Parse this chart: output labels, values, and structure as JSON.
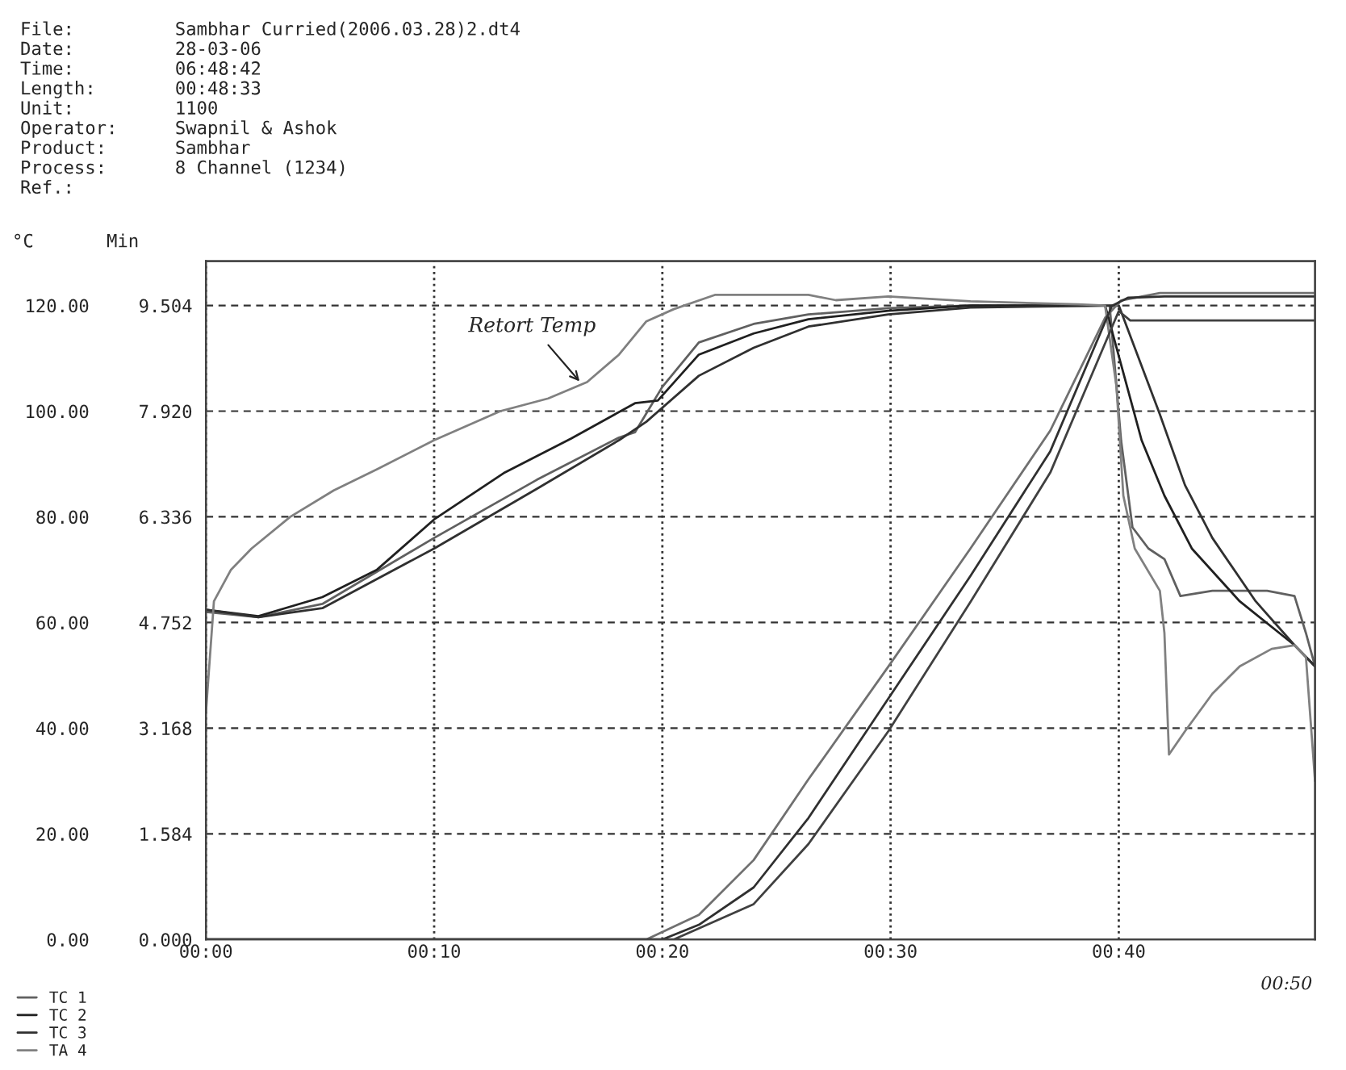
{
  "chart_data": {
    "type": "line",
    "ylabel": "°C",
    "y2label": "Min",
    "annotations": [
      "File: Sambhar Curried(2006.03.28)2.dt4",
      "Date: 28-03-06",
      "Time: 06:48:42",
      "Length: 00:48:33",
      "Unit: 1100",
      "Operator: Swapnil & Ashok",
      "Product: Sambhar",
      "Process: 8 Channel (1234)",
      "Ref.:",
      {
        "text": "Retort Temp",
        "x": 16.5,
        "y": 105
      },
      "00:50"
    ],
    "xlim": [
      0,
      48.6
    ],
    "xticks": [
      {
        "value": 0,
        "label": "00:00"
      },
      {
        "value": 10,
        "label": "00:10"
      },
      {
        "value": 20,
        "label": "00:20"
      },
      {
        "value": 30,
        "label": "00:30"
      },
      {
        "value": 40,
        "label": "00:40"
      }
    ],
    "ylim": [
      0,
      128.4
    ],
    "yticks": [
      {
        "value": 0,
        "label": "0.00"
      },
      {
        "value": 20,
        "label": "20.00"
      },
      {
        "value": 40,
        "label": "40.00"
      },
      {
        "value": 60,
        "label": "60.00"
      },
      {
        "value": 80,
        "label": "80.00"
      },
      {
        "value": 100,
        "label": "100.00"
      },
      {
        "value": 120,
        "label": "120.00"
      }
    ],
    "y2lim": [
      0,
      10.17
    ],
    "y2ticks": [
      {
        "value": 0,
        "label": "0.000"
      },
      {
        "value": 1.584,
        "label": "1.584"
      },
      {
        "value": 3.168,
        "label": "3.168"
      },
      {
        "value": 4.752,
        "label": "4.752"
      },
      {
        "value": 6.336,
        "label": "6.336"
      },
      {
        "value": 7.92,
        "label": "7.920"
      },
      {
        "value": 9.504,
        "label": "9.504"
      }
    ],
    "grid": true,
    "legend": "bottom left",
    "series": [
      {
        "name": "TC 1",
        "color": "#606060",
        "x": [
          0,
          2.3,
          5.1,
          10,
          14.5,
          18.1,
          18.8,
          20,
          21.6,
          24,
          26.4,
          29.9,
          33.5,
          39.6,
          40.1,
          40.6,
          41.3,
          42,
          42.7,
          44.1,
          46.5,
          47.7,
          48.2,
          48.6
        ],
        "values": [
          62,
          61,
          63.5,
          76,
          87,
          95,
          96,
          104.6,
          113,
          116.5,
          118.3,
          119.5,
          120,
          120,
          94.5,
          78,
          74,
          72,
          65,
          66,
          66,
          65,
          58,
          51.7
        ]
      },
      {
        "name": "TC 2",
        "color": "#202020",
        "x": [
          0,
          2.3,
          5.1,
          7.5,
          10,
          13.1,
          16,
          18.8,
          19.8,
          21.6,
          24,
          26.4,
          29.9,
          33.5,
          39.4,
          41,
          42,
          43.2,
          45.3,
          47.7,
          48.6
        ],
        "values": [
          62.4,
          61.2,
          64.8,
          70,
          79.5,
          88.4,
          94.8,
          101.5,
          102,
          110.7,
          114.7,
          117.4,
          119,
          120,
          120,
          94.5,
          84,
          74,
          64,
          55.7,
          51.7
        ]
      },
      {
        "name": "TC 3",
        "color": "#303030",
        "x": [
          0,
          2.3,
          5.1,
          10,
          14.5,
          18.1,
          19.3,
          21.6,
          24,
          26.4,
          29.9,
          33.5,
          40,
          41.8,
          42.9,
          44.1,
          46,
          47.7,
          48.6
        ],
        "values": [
          62.4,
          61,
          62.7,
          74,
          85.3,
          94.5,
          98,
          106.7,
          112,
          116,
          118.3,
          119.6,
          120,
          99.4,
          86,
          76,
          64,
          55.7,
          51.7
        ]
      },
      {
        "name": "TA 4",
        "color": "#808080",
        "x": [
          0,
          0.35,
          1.1,
          2,
          3.7,
          5.6,
          7.5,
          10,
          12.9,
          15,
          16.7,
          18.1,
          19.3,
          20.5,
          22.3,
          26.4,
          27.6,
          29.9,
          33.5,
          38.2,
          39.4,
          39.9,
          40.2,
          40.7,
          41.8,
          42,
          42.2,
          42.9,
          44.1,
          45.3,
          46.7,
          47.7,
          48.2,
          48.6
        ],
        "values": [
          43,
          64,
          70,
          74,
          80,
          85,
          89,
          94.5,
          100,
          102.4,
          105.5,
          110.7,
          117,
          119.3,
          122,
          122,
          121,
          121.7,
          120.8,
          120.2,
          120,
          104.6,
          84,
          74,
          66,
          58,
          35,
          39.4,
          46.5,
          51.7,
          55,
          55.7,
          53.5,
          30
        ]
      },
      {
        "axis": "y2",
        "color": "#707070",
        "x": [
          0,
          19.3,
          21.6,
          24,
          26.4,
          29.9,
          33.5,
          37,
          39.4,
          40.1,
          41.8,
          48.6
        ],
        "values": [
          0,
          0,
          0.37,
          1.19,
          2.4,
          4.09,
          5.86,
          7.63,
          9.32,
          9.58,
          9.69,
          9.69
        ]
      },
      {
        "axis": "y2",
        "color": "#303030",
        "x": [
          0,
          20,
          21.6,
          24,
          26.4,
          29.9,
          33.5,
          37,
          39.7,
          40.4,
          42,
          48.6
        ],
        "values": [
          0,
          0,
          0.22,
          0.78,
          1.82,
          3.61,
          5.45,
          7.32,
          9.5,
          9.62,
          9.64,
          9.64
        ]
      },
      {
        "axis": "y2",
        "color": "#404040",
        "x": [
          0,
          20.5,
          24,
          26.4,
          29.9,
          33.5,
          37,
          40,
          40.5,
          48.6
        ],
        "values": [
          0,
          0,
          0.53,
          1.43,
          3.12,
          5.06,
          7,
          9.42,
          9.28,
          9.28
        ]
      }
    ]
  }
}
